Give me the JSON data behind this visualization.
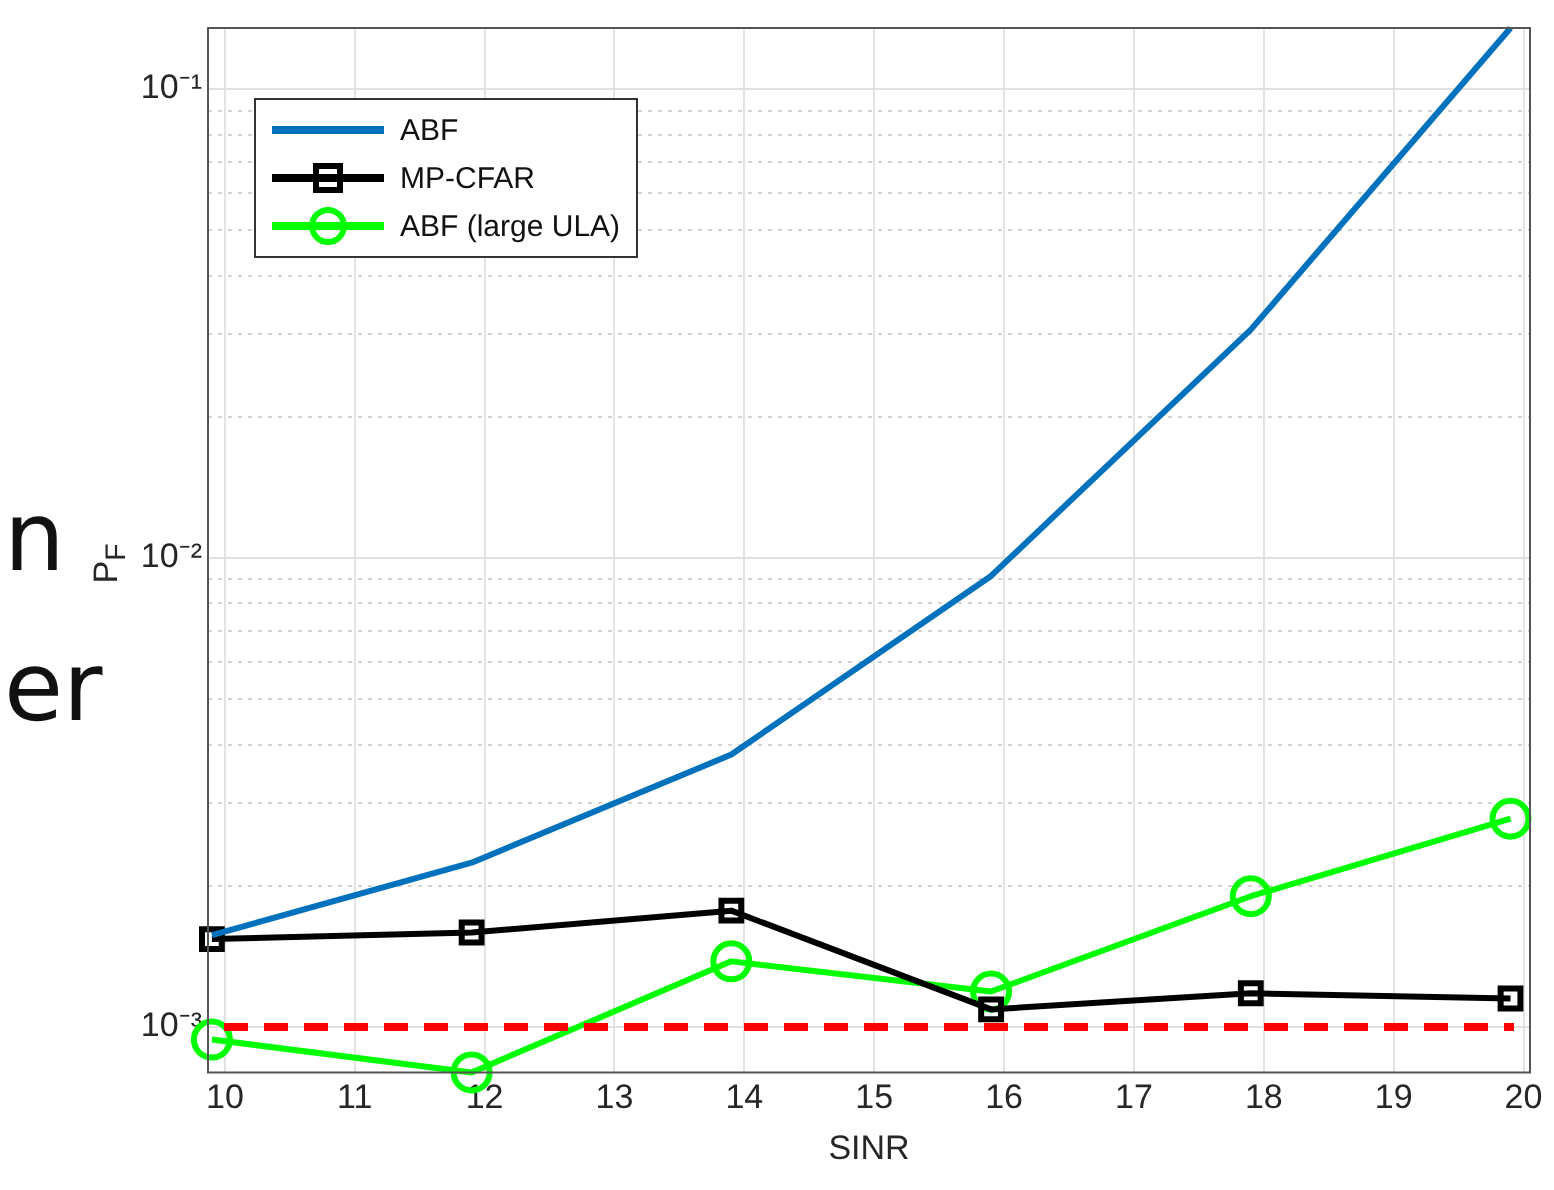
{
  "chart_data": {
    "type": "line",
    "xlabel": "SINR",
    "ylabel": "P$_{F}$",
    "x": [
      9.9,
      11.9,
      13.9,
      15.9,
      17.9,
      19.9
    ],
    "xlim": [
      9.87,
      20.05
    ],
    "xticks": [
      10,
      11,
      12,
      13,
      14,
      15,
      16,
      17,
      18,
      19,
      20
    ],
    "ylim": [
      0.0008,
      0.135
    ],
    "yticks": [
      {
        "value": 0.001,
        "label": "10⁻³"
      },
      {
        "value": 0.002,
        "label": null
      },
      {
        "value": 0.003,
        "label": null
      },
      {
        "value": 0.004,
        "label": null
      },
      {
        "value": 0.005,
        "label": null
      },
      {
        "value": 0.006,
        "label": null
      },
      {
        "value": 0.007,
        "label": null
      },
      {
        "value": 0.008,
        "label": null
      },
      {
        "value": 0.009,
        "label": null
      },
      {
        "value": 0.01,
        "label": "10⁻²"
      },
      {
        "value": 0.02,
        "label": null
      },
      {
        "value": 0.03,
        "label": null
      },
      {
        "value": 0.04,
        "label": null
      },
      {
        "value": 0.05,
        "label": null
      },
      {
        "value": 0.06,
        "label": null
      },
      {
        "value": 0.07,
        "label": null
      },
      {
        "value": 0.08,
        "label": null
      },
      {
        "value": 0.09,
        "label": null
      },
      {
        "value": 0.1,
        "label": "10⁻¹"
      }
    ],
    "log": "y",
    "grid": true,
    "legend": "top left",
    "line_style": "solid",
    "series": [
      {
        "name": "ABF",
        "color": "#0072bd",
        "marker": "none",
        "values": [
          0.00157,
          0.00224,
          0.00381,
          0.00916,
          0.0307,
          0.135
        ]
      },
      {
        "name": "MP-CFAR",
        "color": "#000000",
        "marker": "square",
        "values": [
          0.00154,
          0.00159,
          0.00177,
          0.00109,
          0.00118,
          0.00115
        ]
      },
      {
        "name": "ABF (large ULA)",
        "color": "#00ff00",
        "marker": "circle",
        "values": [
          0.00094,
          0.0008,
          0.00138,
          0.00119,
          0.0019,
          0.00278
        ]
      }
    ],
    "ref_lines": [
      {
        "axis": "y",
        "value": 0.001,
        "color": "#ff0000",
        "line_style": "dashed"
      }
    ],
    "annotations": [
      "n",
      "er"
    ]
  }
}
